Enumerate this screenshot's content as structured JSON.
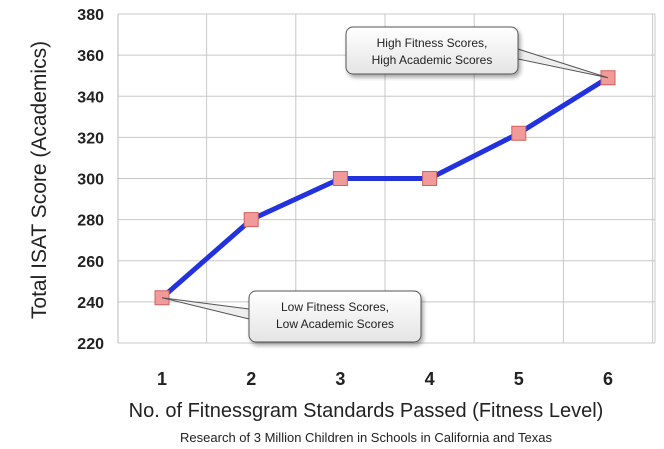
{
  "chart_data": {
    "type": "line",
    "x": [
      1,
      2,
      3,
      4,
      5,
      6
    ],
    "series": [
      {
        "values": [
          242,
          280,
          300,
          300,
          322,
          349
        ]
      }
    ],
    "ylabel": "Total ISAT Score (Academics)",
    "xlabel": "No. of Fitnessgram Standards Passed (Fitness Level)",
    "note": "Research of 3 Million Children in Schools in California and Texas",
    "ylim": [
      220,
      380
    ],
    "yticks": [
      220,
      240,
      260,
      280,
      300,
      320,
      340,
      360,
      380
    ],
    "xticks": [
      "1",
      "2",
      "3",
      "4",
      "5",
      "6"
    ],
    "grid": {
      "horizontal": true,
      "vertical": true
    },
    "line_color": "#2233dd",
    "marker_color": "#f09a9a",
    "annotations": [
      {
        "text_lines": [
          "High Fitness Scores,",
          "High Academic Scores"
        ],
        "points_to": {
          "x": 6,
          "y": 349
        }
      },
      {
        "text_lines": [
          "Low Fitness Scores,",
          "Low Academic Scores"
        ],
        "points_to": {
          "x": 1,
          "y": 242
        }
      }
    ]
  }
}
